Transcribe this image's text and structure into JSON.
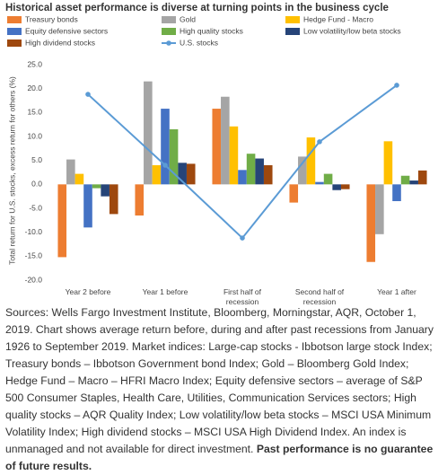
{
  "chart_data": {
    "type": "bar-line",
    "title": "Historical asset performance is diverse at turning points in the business cycle",
    "y_label": "Total return for U.S. stocks, excess return for others (%)",
    "categories": [
      "Year 2 before",
      "Year 1 before",
      "First half of recession",
      "Second half of recession",
      "Year 1 after"
    ],
    "series": [
      {
        "name": "Treasury bonds",
        "type": "bar",
        "color": "#ED7D31",
        "values": [
          -15.2,
          -6.5,
          15.8,
          -3.8,
          -16.2
        ]
      },
      {
        "name": "Gold",
        "type": "bar",
        "color": "#A5A5A5",
        "values": [
          5.2,
          21.5,
          18.3,
          5.8,
          -10.4
        ]
      },
      {
        "name": "Hedge Fund - Macro",
        "type": "bar",
        "color": "#FFC000",
        "values": [
          2.2,
          4.0,
          12.1,
          9.8,
          9.0
        ]
      },
      {
        "name": "Equity defensive sectors",
        "type": "bar",
        "color": "#4472C4",
        "values": [
          -9.0,
          15.8,
          3.0,
          0.5,
          -3.5
        ]
      },
      {
        "name": "High quality stocks",
        "type": "bar",
        "color": "#70AD47",
        "values": [
          -0.8,
          11.5,
          6.4,
          2.2,
          1.8
        ]
      },
      {
        "name": "Low volatility/low beta stocks",
        "type": "bar",
        "color": "#264478",
        "values": [
          -2.5,
          4.5,
          5.4,
          -1.2,
          0.8
        ]
      },
      {
        "name": "High dividend stocks",
        "type": "bar",
        "color": "#9E480E",
        "values": [
          -6.2,
          4.3,
          4.0,
          -1.0,
          2.9
        ]
      },
      {
        "name": "U.S. stocks",
        "type": "line",
        "color": "#5B9BD5",
        "values": [
          18.8,
          4.0,
          -11.2,
          8.9,
          20.7
        ]
      }
    ],
    "ylim": [
      -20,
      25
    ],
    "yticks": [
      {
        "value": 25,
        "label": "25.0"
      },
      {
        "value": 20,
        "label": "20.0"
      },
      {
        "value": 15,
        "label": "15.0"
      },
      {
        "value": 10,
        "label": "10.0"
      },
      {
        "value": 5,
        "label": "5.0"
      },
      {
        "value": 0,
        "label": "0.0"
      },
      {
        "value": -5,
        "label": "-5.0"
      },
      {
        "value": -10,
        "label": "-10.0"
      },
      {
        "value": -15,
        "label": "-15.0"
      },
      {
        "value": -20,
        "label": "-20.0"
      }
    ],
    "grid": false
  },
  "notes": {
    "text": "Sources: Wells Fargo Investment Institute, Bloomberg, Morningstar, AQR, October 1, 2019. Chart shows average return before, during and after past recessions from January 1926 to September 2019. Market indices: Large-cap stocks - Ibbotson large stock Index; Treasury bonds – Ibbotson Government bond Index; Gold – Bloomberg Gold Index; Hedge Fund – Macro – HFRI Macro Index; Equity defensive sectors – average of S&P 500 Consumer Staples, Health Care, Utilities, Communication Services sectors; High quality stocks – AQR Quality Index; Low volatility/low beta stocks – MSCI USA Minimum Volatility Index; High dividend stocks – MSCI USA High Dividend Index. An index is unmanaged and not available for direct investment.",
    "emphasis": "Past performance is no guarantee of future results."
  }
}
